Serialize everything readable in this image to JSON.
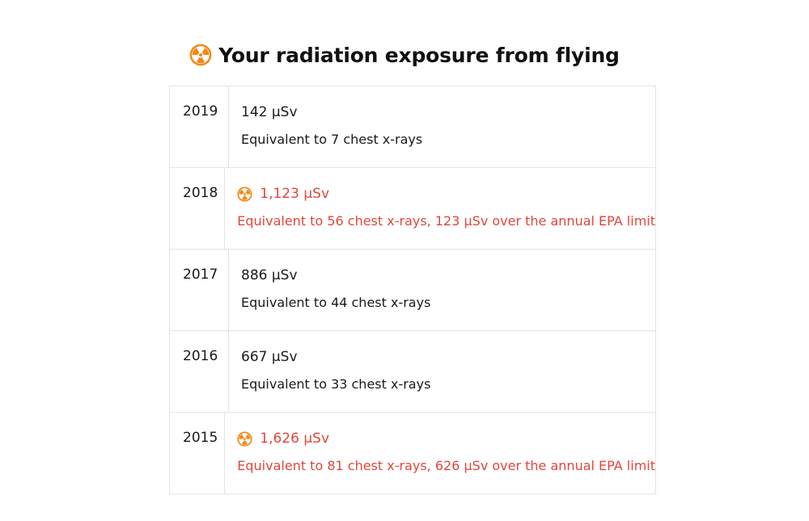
{
  "header": {
    "icon": "radioactive-icon",
    "title": "Your radiation exposure from flying"
  },
  "colors": {
    "warning_text": "#e0463b",
    "icon_fill": "#f08a1c",
    "border": "#e4e4e4"
  },
  "rows": [
    {
      "year": "2019",
      "dose": "142 µSv",
      "equivalent": "Equivalent to 7 chest x-rays",
      "over_limit": false
    },
    {
      "year": "2018",
      "dose": "1,123 µSv",
      "equivalent": "Equivalent to 56 chest x-rays, 123 µSv over the annual EPA limit",
      "over_limit": true
    },
    {
      "year": "2017",
      "dose": "886 µSv",
      "equivalent": "Equivalent to 44 chest x-rays",
      "over_limit": false
    },
    {
      "year": "2016",
      "dose": "667 µSv",
      "equivalent": "Equivalent to 33 chest x-rays",
      "over_limit": false
    },
    {
      "year": "2015",
      "dose": "1,626 µSv",
      "equivalent": "Equivalent to 81 chest x-rays, 626 µSv over the annual EPA limit",
      "over_limit": true
    }
  ]
}
